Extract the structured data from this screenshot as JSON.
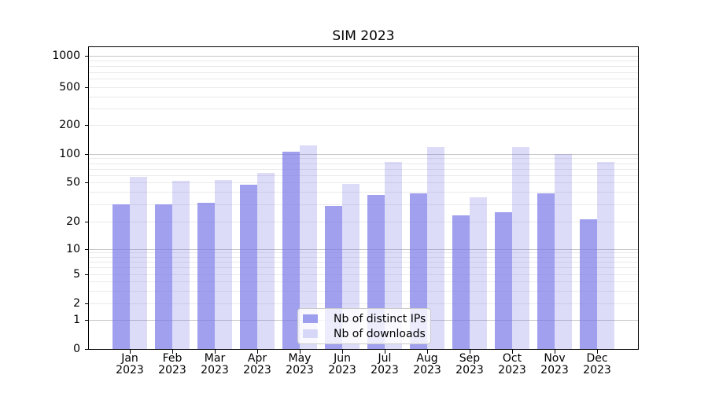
{
  "chart_data": {
    "type": "bar",
    "title": "SIM 2023",
    "x_categories": [
      "Jan",
      "Feb",
      "Mar",
      "Apr",
      "May",
      "Jun",
      "Jul",
      "Aug",
      "Sep",
      "Oct",
      "Nov",
      "Dec"
    ],
    "x_year": "2023",
    "series": [
      {
        "name": "Nb of distinct IPs",
        "color": "#7777E8",
        "alpha": 0.7,
        "values": [
          30,
          30,
          31,
          47,
          105,
          29,
          37,
          39,
          23,
          25,
          39,
          21
        ]
      },
      {
        "name": "Nb of downloads",
        "color": "#7777E8",
        "alpha": 0.26,
        "values": [
          57,
          52,
          53,
          63,
          123,
          48,
          82,
          119,
          35,
          119,
          100,
          83
        ]
      }
    ],
    "y_axis": {
      "scale": "symlog",
      "ylim": [
        0,
        1200
      ],
      "tick_labels": [
        0,
        1,
        2,
        5,
        10,
        20,
        50,
        100,
        200,
        500,
        1000
      ],
      "major_gridlines": [
        1,
        10,
        100,
        1000
      ],
      "minor_gridlines": [
        2,
        3,
        4,
        5,
        6,
        7,
        8,
        9,
        20,
        30,
        40,
        50,
        60,
        70,
        80,
        90,
        200,
        300,
        400,
        500,
        600,
        700,
        800,
        900
      ]
    },
    "legend_position": "lower center",
    "grid": "on",
    "colors": {
      "background": "#ffffff",
      "bar_base": "#7777E8",
      "grid_major": "#c6c6c6",
      "grid_minor": "#eaeaea",
      "spine": "#000000",
      "text": "#000000"
    }
  }
}
